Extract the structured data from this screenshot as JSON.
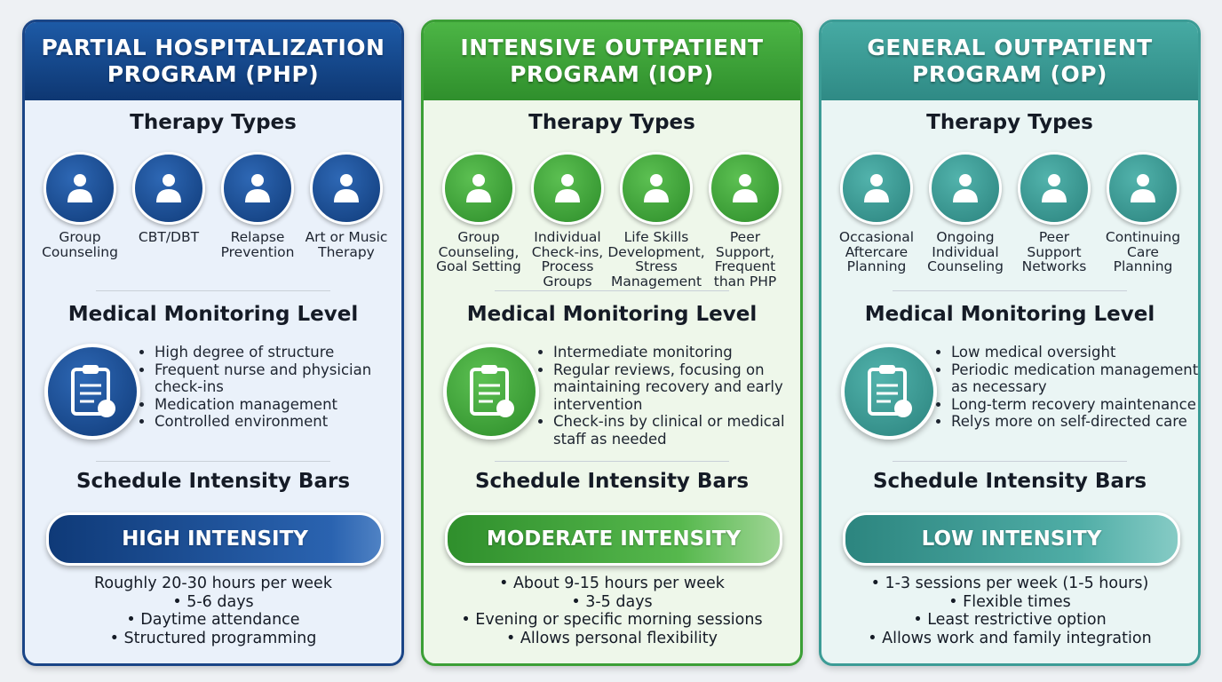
{
  "columns": [
    {
      "title": [
        "PARTIAL HOSPITALIZATION",
        "PROGRAM (PHP)"
      ],
      "therapy_heading": "Therapy Types",
      "therapies": [
        "Group Counseling",
        "CBT/DBT",
        "Relapse Prevention",
        "Art or Music Therapy"
      ],
      "monitoring_heading": "Medical Monitoring Level",
      "monitoring": [
        "High degree of structure",
        "Frequent nurse and physician check-ins",
        "Medication management",
        "Controlled environment"
      ],
      "schedule_heading": "Schedule Intensity Bars",
      "intensity": "HIGH INTENSITY",
      "schedule": [
        "Roughly 20-30 hours per week",
        "• 5-6 days",
        "• Daytime attendance",
        "• Structured programming"
      ]
    },
    {
      "title": [
        "INTENSIVE OUTPATIENT",
        "PROGRAM (IOP)"
      ],
      "therapy_heading": "Therapy Types",
      "therapies": [
        "Group Counseling, Goal Setting",
        "Individual Check-ins, Process Groups",
        "Life Skills Development, Stress Management",
        "Peer Support, Frequent than PHP"
      ],
      "monitoring_heading": "Medical Monitoring Level",
      "monitoring": [
        "Intermediate monitoring",
        "Regular reviews, focusing on maintaining recovery and early intervention",
        "Check-ins by clinical or medical staff as needed"
      ],
      "schedule_heading": "Schedule Intensity Bars",
      "intensity": "MODERATE INTENSITY",
      "schedule": [
        "• About 9-15 hours per week",
        "• 3-5 days",
        "• Evening or specific morning sessions",
        "• Allows personal flexibility"
      ]
    },
    {
      "title": [
        "GENERAL OUTPATIENT",
        "PROGRAM (OP)"
      ],
      "therapy_heading": "Therapy Types",
      "therapies": [
        "Occasional Aftercare Planning",
        "Ongoing Individual Counseling",
        "Peer Support Networks",
        "Continuing Care Planning"
      ],
      "monitoring_heading": "Medical Monitoring Level",
      "monitoring": [
        "Low medical oversight",
        "Periodic medication management as necessary",
        "Long-term recovery maintenance",
        "Relys more on self-directed care"
      ],
      "schedule_heading": "Schedule Intensity Bars",
      "intensity": "LOW INTENSITY",
      "schedule": [
        "• 1-3 sessions per week (1-5 hours)",
        "• Flexible times",
        "• Least restrictive option",
        "• Allows work and family integration"
      ]
    }
  ]
}
